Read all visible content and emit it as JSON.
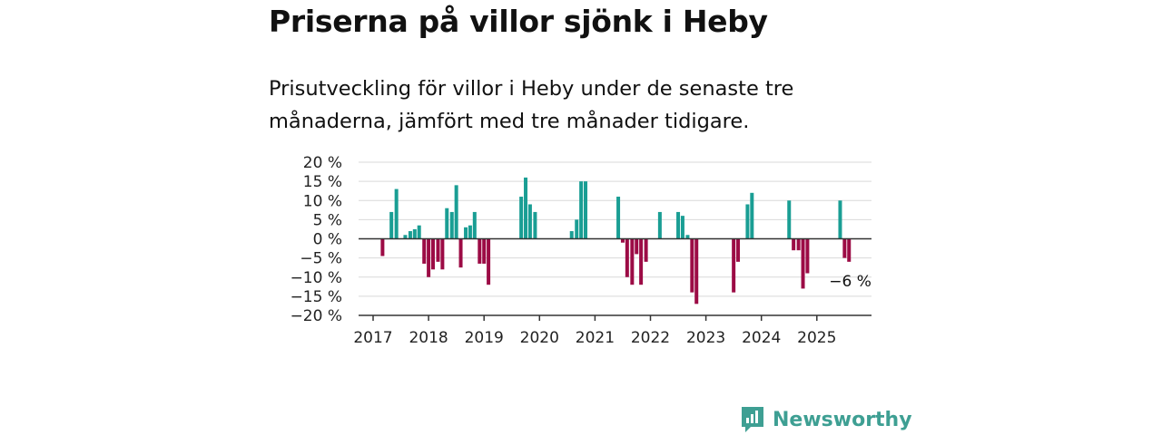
{
  "header": {
    "title": "Priserna på villor sjönk i Heby",
    "subtitle": "Prisutveckling för villor i Heby under de senaste tre månaderna, jämfört med tre månader tidigare."
  },
  "brand": {
    "name": "Newsworthy",
    "icon": "newsworthy-logo-icon",
    "color": "#3e9f93"
  },
  "colors": {
    "positive": "#1a9e94",
    "negative": "#9c0b45",
    "grid": "#d9d9d9",
    "axis": "#333333"
  },
  "chart_data": {
    "type": "bar",
    "ylim": [
      -20,
      20
    ],
    "yticks": [
      20,
      15,
      10,
      5,
      0,
      -5,
      -10,
      -15,
      -20
    ],
    "ytick_labels": [
      "20 %",
      "15 %",
      "10 %",
      "5 %",
      "0 %",
      "−5 %",
      "−10 %",
      "−15 %",
      "−20 %"
    ],
    "xticks": [
      2017,
      2018,
      2019,
      2020,
      2021,
      2022,
      2023,
      2024,
      2025
    ],
    "xlim": [
      2016.9,
      2026.1
    ],
    "grid": true,
    "bars": [
      {
        "x": 2017.17,
        "value": -4.5
      },
      {
        "x": 2017.33,
        "value": 7
      },
      {
        "x": 2017.42,
        "value": 13
      },
      {
        "x": 2017.58,
        "value": 1
      },
      {
        "x": 2017.67,
        "value": 2
      },
      {
        "x": 2017.75,
        "value": 2.5
      },
      {
        "x": 2017.83,
        "value": 3.5
      },
      {
        "x": 2017.92,
        "value": -6.5
      },
      {
        "x": 2018.0,
        "value": -10
      },
      {
        "x": 2018.08,
        "value": -8
      },
      {
        "x": 2018.17,
        "value": -6
      },
      {
        "x": 2018.25,
        "value": -8
      },
      {
        "x": 2018.33,
        "value": 8
      },
      {
        "x": 2018.42,
        "value": 7
      },
      {
        "x": 2018.5,
        "value": 14
      },
      {
        "x": 2018.58,
        "value": -7.5
      },
      {
        "x": 2018.67,
        "value": 3
      },
      {
        "x": 2018.75,
        "value": 3.5
      },
      {
        "x": 2018.83,
        "value": 7
      },
      {
        "x": 2018.92,
        "value": -6.5
      },
      {
        "x": 2019.0,
        "value": -6.5
      },
      {
        "x": 2019.08,
        "value": -12
      },
      {
        "x": 2019.67,
        "value": 11
      },
      {
        "x": 2019.75,
        "value": 16
      },
      {
        "x": 2019.83,
        "value": 9
      },
      {
        "x": 2019.92,
        "value": 7
      },
      {
        "x": 2020.58,
        "value": 2
      },
      {
        "x": 2020.67,
        "value": 5
      },
      {
        "x": 2020.75,
        "value": 15
      },
      {
        "x": 2020.83,
        "value": 15
      },
      {
        "x": 2021.42,
        "value": 11
      },
      {
        "x": 2021.5,
        "value": -1
      },
      {
        "x": 2021.58,
        "value": -10
      },
      {
        "x": 2021.67,
        "value": -12
      },
      {
        "x": 2021.75,
        "value": -4
      },
      {
        "x": 2021.83,
        "value": -12
      },
      {
        "x": 2021.92,
        "value": -6
      },
      {
        "x": 2022.17,
        "value": 7
      },
      {
        "x": 2022.5,
        "value": 7
      },
      {
        "x": 2022.58,
        "value": 6
      },
      {
        "x": 2022.67,
        "value": 1
      },
      {
        "x": 2022.75,
        "value": -14
      },
      {
        "x": 2022.83,
        "value": -17
      },
      {
        "x": 2023.5,
        "value": -14
      },
      {
        "x": 2023.58,
        "value": -6
      },
      {
        "x": 2023.75,
        "value": 9
      },
      {
        "x": 2023.83,
        "value": 12
      },
      {
        "x": 2024.5,
        "value": 10
      },
      {
        "x": 2024.58,
        "value": -3
      },
      {
        "x": 2024.67,
        "value": -3
      },
      {
        "x": 2024.75,
        "value": -13
      },
      {
        "x": 2024.83,
        "value": -9
      },
      {
        "x": 2025.42,
        "value": 10
      },
      {
        "x": 2025.5,
        "value": -5
      },
      {
        "x": 2025.58,
        "value": -6
      }
    ],
    "annotation": {
      "text": "−6 %",
      "x": 2025.58,
      "value": -6
    }
  }
}
